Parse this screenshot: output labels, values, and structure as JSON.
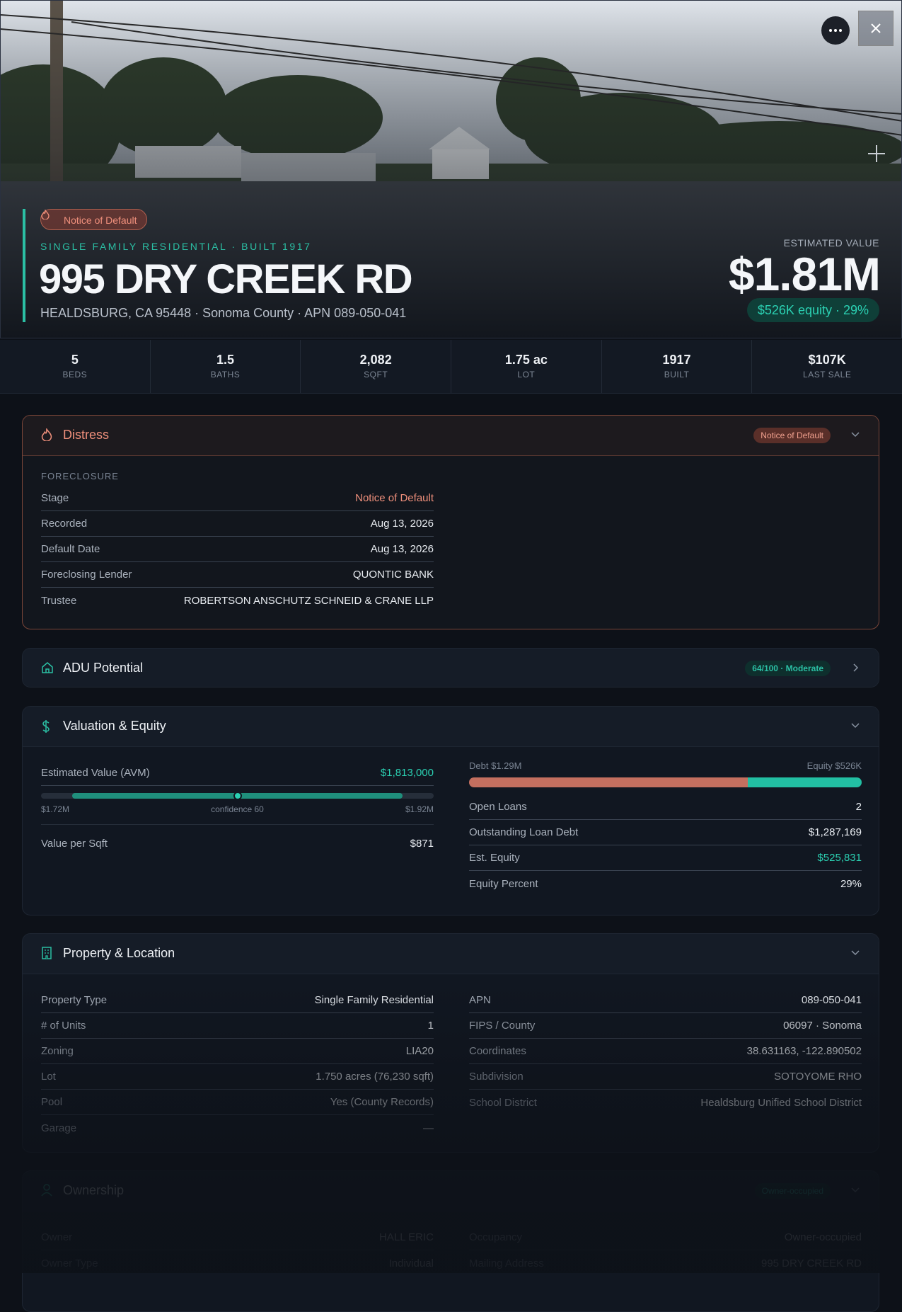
{
  "hero": {
    "badge": "Notice of Default",
    "subtitle": "SINGLE FAMILY RESIDENTIAL · BUILT 1917",
    "address": "995 DRY CREEK RD",
    "location": "HEALDSBURG, CA 95448 · Sonoma County · APN 089-050-041",
    "value_label": "ESTIMATED VALUE",
    "value": "$1.81M",
    "equity": "$526K equity · 29%"
  },
  "stats": [
    {
      "value": "5",
      "label": "BEDS"
    },
    {
      "value": "1.5",
      "label": "BATHS"
    },
    {
      "value": "2,082",
      "label": "SQFT"
    },
    {
      "value": "1.75 ac",
      "label": "LOT"
    },
    {
      "value": "1917",
      "label": "BUILT"
    },
    {
      "value": "$107K",
      "label": "LAST SALE"
    }
  ],
  "distress": {
    "title": "Distress",
    "badge": "Notice of Default",
    "section": "FORECLOSURE",
    "rows": [
      [
        "Stage",
        "Notice of Default"
      ],
      [
        "Recorded",
        "Aug 13, 2026"
      ],
      [
        "Default Date",
        "Aug 13, 2026"
      ],
      [
        "Foreclosing Lender",
        "QUONTIC BANK"
      ],
      [
        "Trustee",
        "ROBERTSON ANSCHUTZ SCHNEID & CRANE LLP"
      ]
    ]
  },
  "adu": {
    "title": "ADU Potential",
    "badge": "64/100 · Moderate"
  },
  "valuation": {
    "title": "Valuation & Equity",
    "avm_label": "Estimated Value (AVM)",
    "avm_value": "$1,813,000",
    "range_low": "$1.72M",
    "confidence": "confidence 60",
    "range_high": "$1.92M",
    "rows": [
      [
        "Value per Sqft",
        "$871"
      ]
    ],
    "debt_label": "Debt $1.29M",
    "equity_label": "Equity $526K",
    "loan_rows": [
      [
        "Open Loans",
        "2"
      ],
      [
        "Outstanding Loan Debt",
        "$1,287,169"
      ],
      [
        "Est. Equity",
        "$525,831"
      ],
      [
        "Equity Percent",
        "29%"
      ]
    ]
  },
  "property": {
    "title": "Property & Location",
    "left_rows": [
      [
        "Property Type",
        "Single Family Residential"
      ],
      [
        "# of Units",
        "1"
      ],
      [
        "Zoning",
        "LIA20"
      ],
      [
        "Lot",
        "1.750 acres (76,230 sqft)"
      ],
      [
        "Pool",
        "Yes (County Records)"
      ],
      [
        "Garage",
        "—"
      ]
    ],
    "right_rows": [
      [
        "APN",
        "089-050-041"
      ],
      [
        "FIPS / County",
        "06097 · Sonoma"
      ],
      [
        "Coordinates",
        "38.631163, -122.890502"
      ],
      [
        "Subdivision",
        "SOTOYOME RHO"
      ],
      [
        "School District",
        "Healdsburg Unified School District"
      ]
    ]
  },
  "ownership": {
    "title": "Ownership",
    "badge": "Owner-occupied",
    "left_rows": [
      [
        "Owner",
        "HALL ERIC"
      ],
      [
        "Owner Type",
        "Individual"
      ]
    ],
    "right_rows": [
      [
        "Occupancy",
        "Owner-occupied"
      ],
      [
        "Mailing Address",
        "995 DRY CREEK RD"
      ]
    ]
  }
}
